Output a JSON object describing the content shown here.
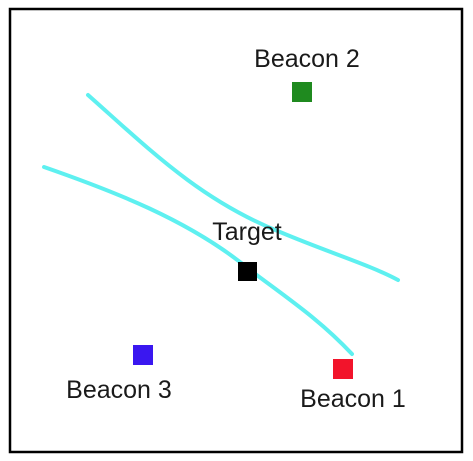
{
  "diagram": {
    "frame_color": "#000000",
    "curve_color": "#5ef0f0",
    "target": {
      "label": "Target",
      "color": "#000000"
    },
    "beacons": [
      {
        "id": "beacon-1",
        "label": "Beacon 1",
        "color": "#f2142b"
      },
      {
        "id": "beacon-2",
        "label": "Beacon 2",
        "color": "#1f8a1f"
      },
      {
        "id": "beacon-3",
        "label": "Beacon 3",
        "color": "#3a17f0"
      }
    ]
  }
}
